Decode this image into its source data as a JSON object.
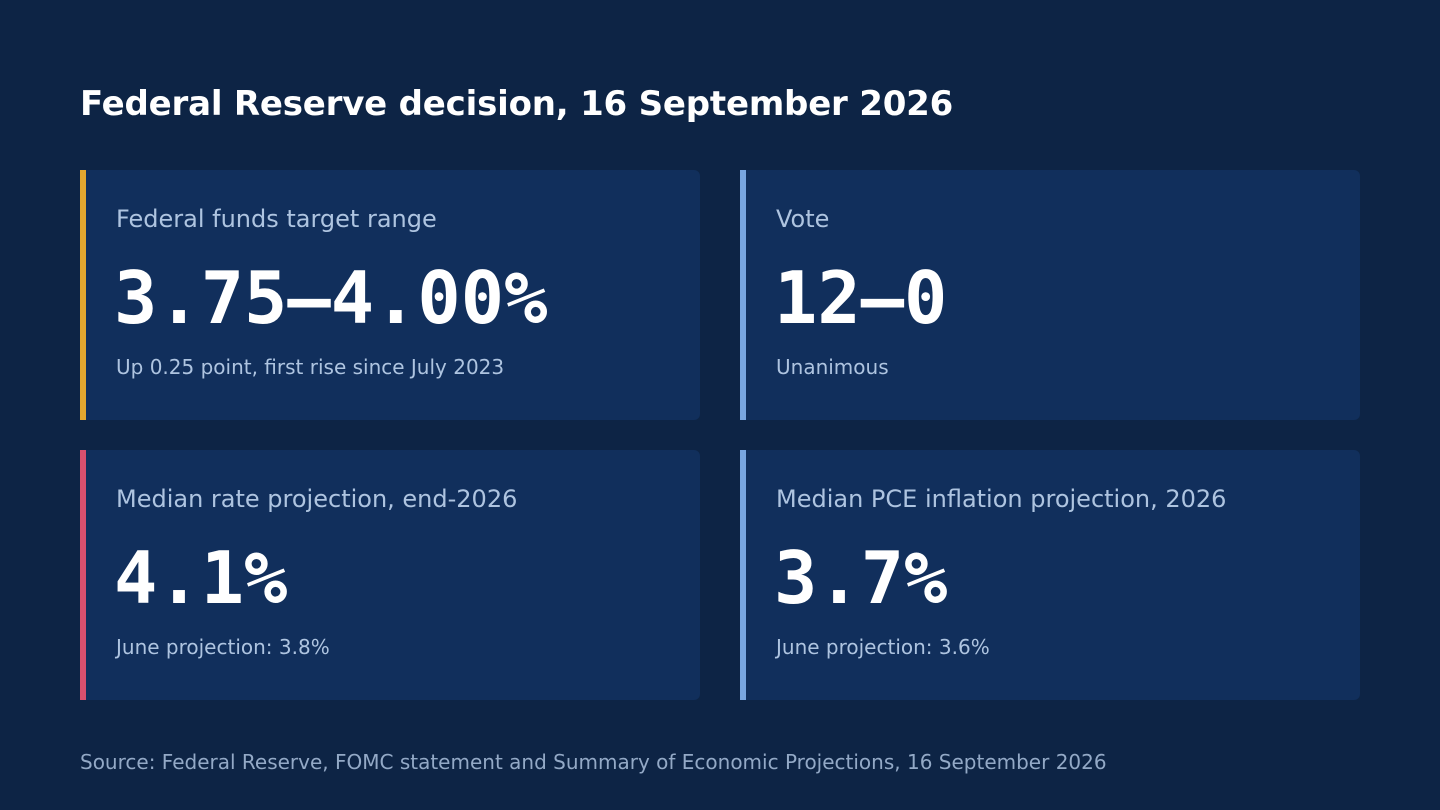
{
  "title": "Federal Reserve decision, 16 September 2026",
  "cards": [
    {
      "label": "Federal funds target range",
      "value": "3.75–4.00%",
      "note": "Up 0.25 point, first rise since July 2023",
      "accent": "#e3a72f"
    },
    {
      "label": "Vote",
      "value": "12–0",
      "note": "Unanimous",
      "accent": "#79a6e0"
    },
    {
      "label": "Median rate projection, end-2026",
      "value": "4.1%",
      "note": "June projection: 3.8%",
      "accent": "#d9506e"
    },
    {
      "label": "Median PCE inflation projection, 2026",
      "value": "3.7%",
      "note": "June projection: 3.6%",
      "accent": "#79a6e0"
    }
  ],
  "source": "Source: Federal Reserve, FOMC statement and Summary of Economic Projections, 16 September 2026",
  "colors": {
    "background": "#0d2445",
    "card": "#112f5c",
    "label": "#aec4e0"
  }
}
